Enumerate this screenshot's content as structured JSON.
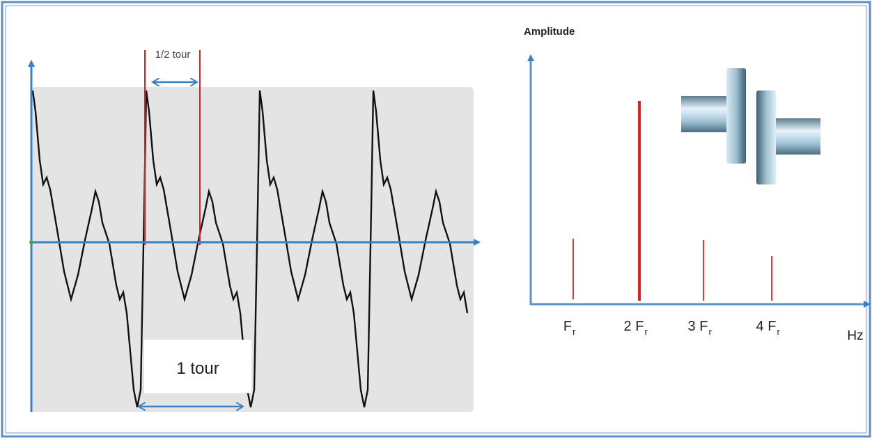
{
  "waveform": {
    "half_turn_label": "1/2 tour",
    "turn_label": "1 tour"
  },
  "spectrum": {
    "y_axis_label": "Amplitude",
    "x_axis_label": "Hz",
    "harmonics": [
      {
        "label": "F",
        "subscript": "r"
      },
      {
        "label": "2 F",
        "subscript": "r"
      },
      {
        "label": "3 F",
        "subscript": "r"
      },
      {
        "label": "4 F",
        "subscript": "r"
      }
    ]
  }
}
